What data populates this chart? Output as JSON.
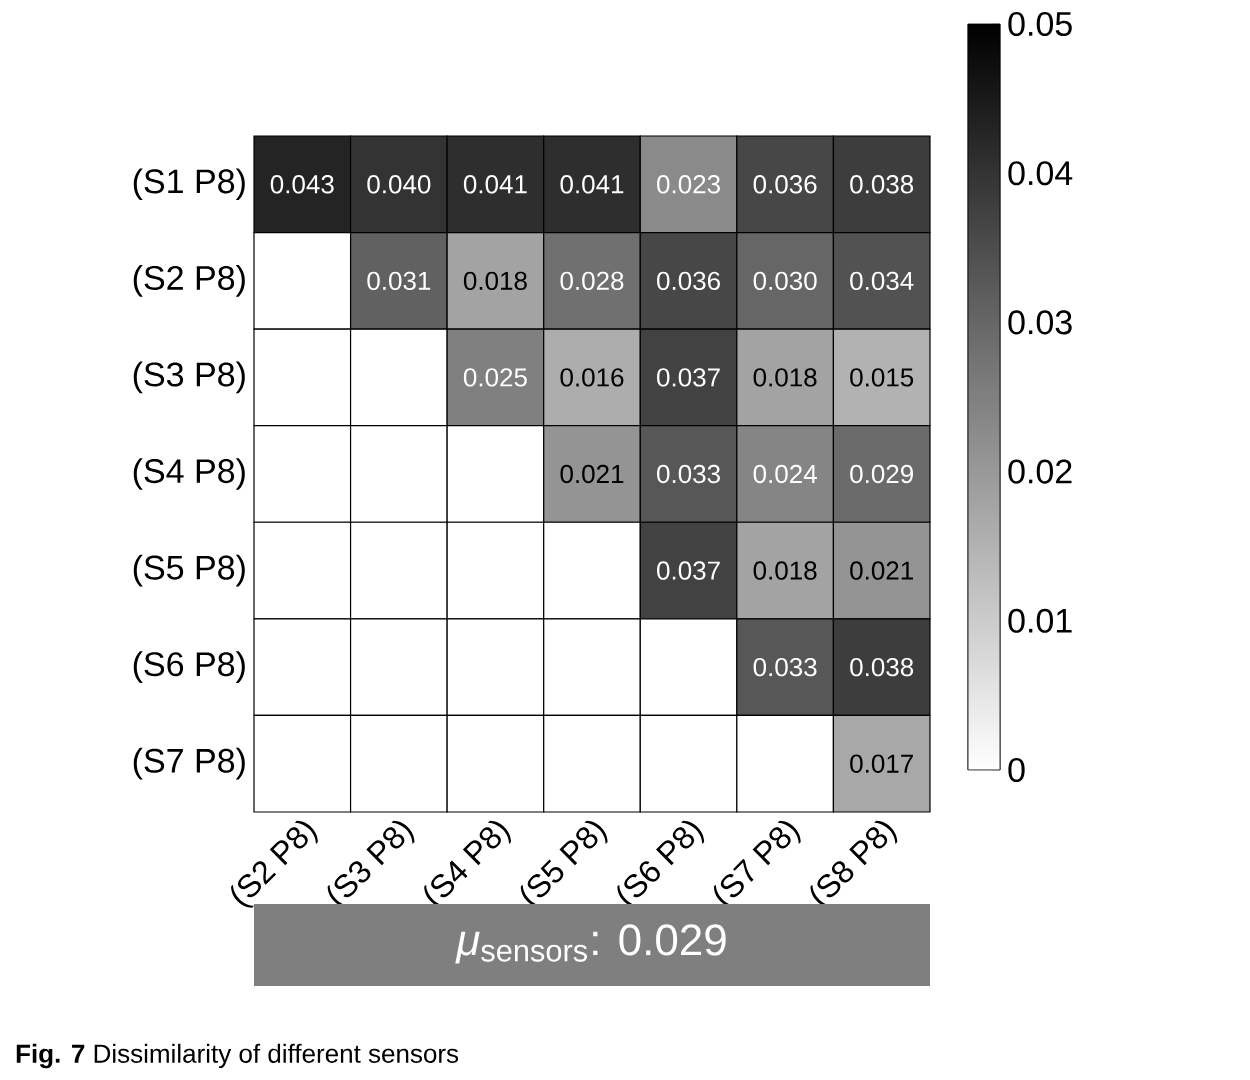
{
  "chart_data": {
    "type": "heatmap",
    "categories": [
      "(S2 P8)",
      "(S3 P8)",
      "(S4 P8)",
      "(S5 P8)",
      "(S6 P8)",
      "(S7 P8)",
      "(S8 P8)"
    ],
    "y_categories": [
      "(S1 P8)",
      "(S2 P8)",
      "(S3 P8)",
      "(S4 P8)",
      "(S5 P8)",
      "(S6 P8)",
      "(S7 P8)"
    ],
    "cells": [
      [
        0.043,
        0.04,
        0.041,
        0.041,
        0.023,
        0.036,
        0.038
      ],
      [
        null,
        0.031,
        0.018,
        0.028,
        0.036,
        0.03,
        0.034
      ],
      [
        null,
        null,
        0.025,
        0.016,
        0.037,
        0.018,
        0.015
      ],
      [
        null,
        null,
        null,
        0.021,
        0.033,
        0.024,
        0.029
      ],
      [
        null,
        null,
        null,
        null,
        0.037,
        0.018,
        0.021
      ],
      [
        null,
        null,
        null,
        null,
        null,
        0.033,
        0.038
      ],
      [
        null,
        null,
        null,
        null,
        null,
        null,
        0.017
      ]
    ],
    "cell_labels": [
      [
        "0.043",
        "0.040",
        "0.041",
        "0.041",
        "0.023",
        "0.036",
        "0.038"
      ],
      [
        null,
        "0.031",
        "0.018",
        "0.028",
        "0.036",
        "0.030",
        "0.034"
      ],
      [
        null,
        null,
        "0.025",
        "0.016",
        "0.037",
        "0.018",
        "0.015"
      ],
      [
        null,
        null,
        null,
        "0.021",
        "0.033",
        "0.024",
        "0.029"
      ],
      [
        null,
        null,
        null,
        null,
        "0.037",
        "0.018",
        "0.021"
      ],
      [
        null,
        null,
        null,
        null,
        null,
        "0.033",
        "0.038"
      ],
      [
        null,
        null,
        null,
        null,
        null,
        null,
        "0.017"
      ]
    ],
    "clim": [
      0,
      0.05
    ],
    "cticks": [
      0,
      0.01,
      0.02,
      0.03,
      0.04,
      0.05
    ],
    "annotations": [
      "*μ*$_{sensors}$: 0.029",
      "**Fig. 7** Dissimilarity of different sensors"
    ]
  }
}
